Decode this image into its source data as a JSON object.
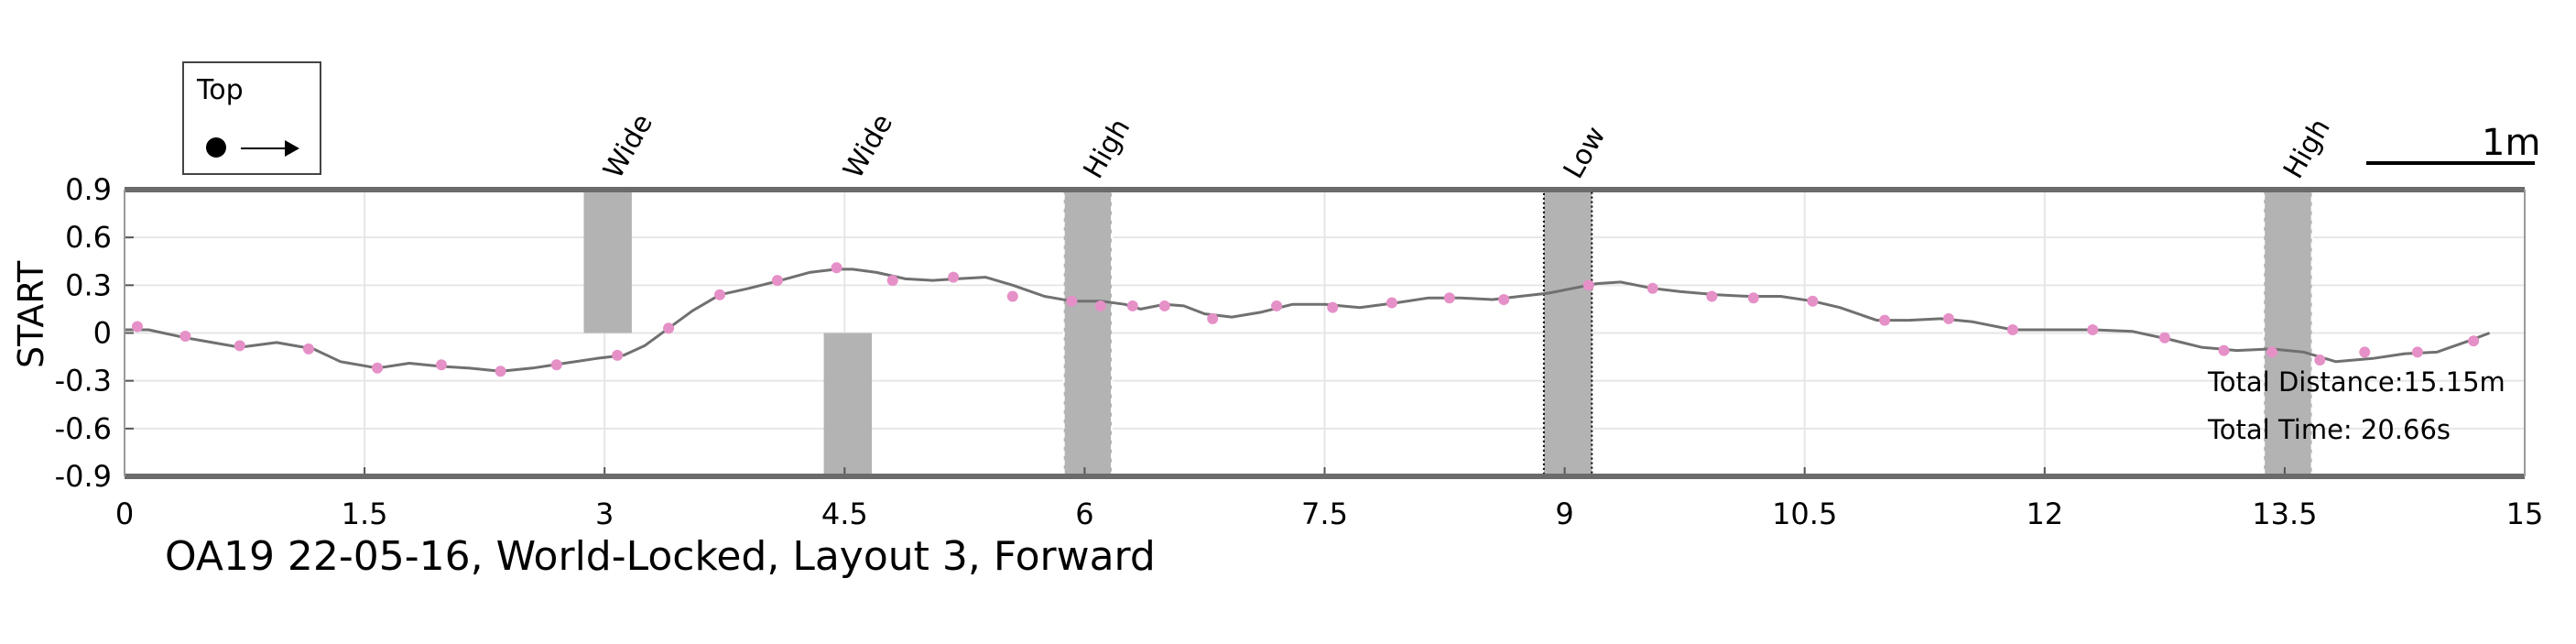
{
  "chart_data": {
    "type": "line",
    "caption": "OA19 22-05-16, World-Locked, Layout 3, Forward",
    "ylabel": "START",
    "xlim": [
      0,
      15
    ],
    "ylim": [
      -0.9,
      0.9
    ],
    "x_ticks": [
      "0",
      "1.5",
      "3",
      "4.5",
      "6",
      "7.5",
      "9",
      "10.5",
      "12",
      "13.5",
      "15"
    ],
    "y_ticks": [
      "0.9",
      "0.6",
      "0.3",
      "0",
      "-0.3",
      "-0.6",
      "-0.9"
    ],
    "grid": true,
    "legend": {
      "title": "Top",
      "position": "top-left"
    },
    "scale_bar": {
      "label": "1m"
    },
    "stats": {
      "distance": "Total Distance:15.15m",
      "time": "Total Time: 20.66s"
    },
    "path": {
      "color": "#707070",
      "x": [
        0.0,
        0.15,
        0.38,
        0.55,
        0.72,
        0.95,
        1.18,
        1.35,
        1.58,
        1.78,
        1.98,
        2.15,
        2.35,
        2.55,
        2.75,
        2.95,
        3.12,
        3.25,
        3.4,
        3.55,
        3.72,
        3.9,
        4.1,
        4.28,
        4.45,
        4.55,
        4.7,
        4.88,
        5.05,
        5.2,
        5.38,
        5.55,
        5.75,
        5.92,
        6.1,
        6.25,
        6.35,
        6.5,
        6.62,
        6.75,
        6.92,
        7.1,
        7.3,
        7.5,
        7.72,
        7.95,
        8.15,
        8.35,
        8.55,
        8.72,
        8.9,
        9.05,
        9.2,
        9.35,
        9.55,
        9.72,
        9.95,
        10.15,
        10.35,
        10.55,
        10.72,
        10.95,
        11.15,
        11.35,
        11.55,
        11.8,
        12.05,
        12.3,
        12.55,
        12.78,
        12.98,
        13.2,
        13.42,
        13.62,
        13.82,
        14.05,
        14.25,
        14.45,
        14.65,
        14.78
      ],
      "y": [
        0.02,
        0.02,
        -0.03,
        -0.06,
        -0.09,
        -0.06,
        -0.1,
        -0.18,
        -0.22,
        -0.19,
        -0.21,
        -0.22,
        -0.24,
        -0.22,
        -0.19,
        -0.16,
        -0.14,
        -0.08,
        0.03,
        0.14,
        0.24,
        0.28,
        0.33,
        0.38,
        0.4,
        0.4,
        0.38,
        0.34,
        0.33,
        0.34,
        0.35,
        0.3,
        0.23,
        0.2,
        0.2,
        0.18,
        0.15,
        0.18,
        0.17,
        0.12,
        0.1,
        0.13,
        0.18,
        0.18,
        0.16,
        0.19,
        0.22,
        0.22,
        0.21,
        0.23,
        0.25,
        0.28,
        0.31,
        0.32,
        0.28,
        0.26,
        0.24,
        0.23,
        0.23,
        0.2,
        0.16,
        0.08,
        0.08,
        0.09,
        0.07,
        0.02,
        0.02,
        0.02,
        0.01,
        -0.04,
        -0.09,
        -0.11,
        -0.1,
        -0.12,
        -0.18,
        -0.16,
        -0.13,
        -0.12,
        -0.05,
        0.0
      ]
    },
    "markers": {
      "color": "#e690c8",
      "x": [
        0.08,
        0.38,
        0.72,
        1.15,
        1.58,
        1.98,
        2.35,
        2.7,
        3.08,
        3.4,
        3.72,
        4.08,
        4.45,
        4.8,
        5.18,
        5.55,
        5.92,
        6.1,
        6.3,
        6.5,
        6.8,
        7.2,
        7.55,
        7.92,
        8.28,
        8.62,
        9.15,
        9.55,
        9.92,
        10.18,
        10.55,
        11.0,
        11.4,
        11.8,
        12.3,
        12.75,
        13.12,
        13.42,
        13.72,
        14.0,
        14.33,
        14.68
      ],
      "y": [
        0.04,
        -0.02,
        -0.08,
        -0.1,
        -0.22,
        -0.2,
        -0.24,
        -0.2,
        -0.14,
        0.03,
        0.24,
        0.33,
        0.41,
        0.33,
        0.35,
        0.23,
        0.2,
        0.17,
        0.17,
        0.17,
        0.09,
        0.17,
        0.16,
        0.19,
        0.22,
        0.21,
        0.3,
        0.28,
        0.23,
        0.22,
        0.2,
        0.08,
        0.09,
        0.02,
        0.02,
        -0.03,
        -0.11,
        -0.12,
        -0.17,
        -0.12,
        -0.12,
        -0.05
      ]
    },
    "obstacles": [
      {
        "label": "Wide",
        "x0": 2.87,
        "x1": 3.17,
        "y0": 0.0,
        "y1": 0.9,
        "style": "solid"
      },
      {
        "label": "Wide",
        "x0": 4.37,
        "x1": 4.67,
        "y0": -0.9,
        "y1": 0.0,
        "style": "solid"
      },
      {
        "label": "High",
        "x0": 5.87,
        "x1": 6.17,
        "y0": -0.9,
        "y1": 0.9,
        "style": "dashed"
      },
      {
        "label": "Low",
        "x0": 8.87,
        "x1": 9.17,
        "y0": -0.9,
        "y1": 0.9,
        "style": "dotted"
      },
      {
        "label": "High",
        "x0": 13.37,
        "x1": 13.67,
        "y0": -0.9,
        "y1": 0.9,
        "style": "dashed"
      }
    ]
  }
}
